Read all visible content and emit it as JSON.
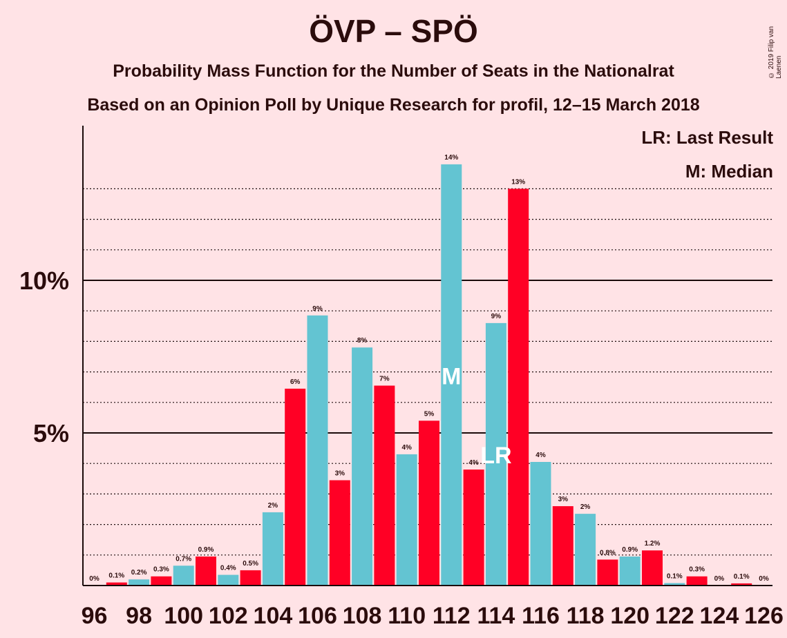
{
  "title": "ÖVP – SPÖ",
  "subtitle": "Probability Mass Function for the Number of Seats in the Nationalrat",
  "subtitle2": "Based on an Opinion Poll by Unique Research for profil, 12–15 March 2018",
  "copyright": "© 2019 Filip van Laenen",
  "legend": {
    "last_result": "LR: Last Result",
    "median": "M: Median"
  },
  "colors": {
    "background": "#ffe3e6",
    "teal": "#63c4d2",
    "red": "#ff0025",
    "text": "#2b0c0c"
  },
  "chart_data": {
    "type": "bar",
    "categories": [
      96,
      97,
      98,
      99,
      100,
      101,
      102,
      103,
      104,
      105,
      106,
      107,
      108,
      109,
      110,
      111,
      112,
      113,
      114,
      115,
      116,
      117,
      118,
      119,
      120,
      121,
      122,
      123,
      124,
      125,
      126
    ],
    "values": [
      0.0,
      0.1,
      0.2,
      0.3,
      0.65,
      0.95,
      0.35,
      0.5,
      2.4,
      6.45,
      8.85,
      3.45,
      7.8,
      6.55,
      4.3,
      5.4,
      13.8,
      3.8,
      8.6,
      13.0,
      4.05,
      2.6,
      2.35,
      0.85,
      0.95,
      1.15,
      0.08,
      0.3,
      0.0,
      0.07,
      0.0
    ],
    "bar_labels": [
      "0%",
      "0.1%",
      "0.2%",
      "0.3%",
      "0.7%",
      "0.9%",
      "0.4%",
      "0.5%",
      "2%",
      "6%",
      "9%",
      "3%",
      "8%",
      "7%",
      "4%",
      "5%",
      "14%",
      "4%",
      "9%",
      "13%",
      "4%",
      "3%",
      "2%",
      "0.8%",
      "0.9%",
      "1.2%",
      "0.1%",
      "0.3%",
      "0%",
      "0.1%",
      "0%"
    ],
    "xtick_labels": [
      "96",
      "98",
      "100",
      "102",
      "104",
      "106",
      "108",
      "110",
      "112",
      "114",
      "116",
      "118",
      "120",
      "122",
      "124",
      "126"
    ],
    "ytick_labels": [
      "5%",
      "10%"
    ],
    "yticks": [
      5,
      10
    ],
    "ylim": [
      0,
      15
    ],
    "median_seat": 112,
    "median_marker": "M",
    "last_result_seat": 114,
    "last_result_marker": "LR",
    "grid": true
  }
}
